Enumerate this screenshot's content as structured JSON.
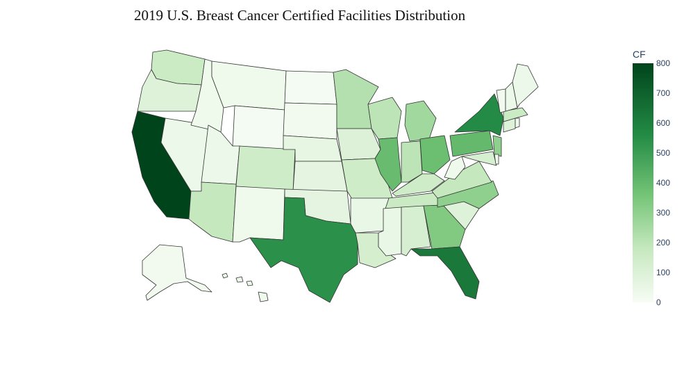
{
  "title": "2019 U.S. Breast Cancer Certified Facilities Distribution",
  "colorbar": {
    "title": "CF",
    "ticks": [
      "0",
      "100",
      "200",
      "300",
      "400",
      "500",
      "600",
      "700",
      "800"
    ],
    "min": 0,
    "max": 800,
    "colors": [
      "#f7fcf5",
      "#c7e9c0",
      "#74c476",
      "#238b45",
      "#00441b"
    ]
  },
  "map_data": {
    "type": "choropleth",
    "scope": "usa",
    "states": [
      {
        "state": "CA",
        "value": 800
      },
      {
        "state": "FL",
        "value": 620
      },
      {
        "state": "TX",
        "value": 540
      },
      {
        "state": "NY",
        "value": 560
      },
      {
        "state": "PA",
        "value": 400
      },
      {
        "state": "OH",
        "value": 380
      },
      {
        "state": "IL",
        "value": 390
      },
      {
        "state": "GA",
        "value": 330
      },
      {
        "state": "NC",
        "value": 300
      },
      {
        "state": "MI",
        "value": 260
      },
      {
        "state": "NJ",
        "value": 300
      },
      {
        "state": "WI",
        "value": 200
      },
      {
        "state": "MN",
        "value": 220
      },
      {
        "state": "IN",
        "value": 200
      },
      {
        "state": "VA",
        "value": 180
      },
      {
        "state": "AZ",
        "value": 180
      },
      {
        "state": "CO",
        "value": 150
      },
      {
        "state": "TN",
        "value": 170
      },
      {
        "state": "MO",
        "value": 150
      },
      {
        "state": "WA",
        "value": 160
      },
      {
        "state": "KY",
        "value": 150
      },
      {
        "state": "LA",
        "value": 130
      },
      {
        "state": "AL",
        "value": 120
      },
      {
        "state": "SC",
        "value": 90
      },
      {
        "state": "MA",
        "value": 160
      },
      {
        "state": "OR",
        "value": 90
      },
      {
        "state": "IA",
        "value": 100
      },
      {
        "state": "KS",
        "value": 70
      },
      {
        "state": "NE",
        "value": 60
      },
      {
        "state": "OK",
        "value": 70
      },
      {
        "state": "AR",
        "value": 50
      },
      {
        "state": "MS",
        "value": 50
      },
      {
        "state": "MD",
        "value": 120
      },
      {
        "state": "CT",
        "value": 90
      },
      {
        "state": "NV",
        "value": 40
      },
      {
        "state": "UT",
        "value": 40
      },
      {
        "state": "NM",
        "value": 30
      },
      {
        "state": "ID",
        "value": 30
      },
      {
        "state": "MT",
        "value": 30
      },
      {
        "state": "WY",
        "value": 10
      },
      {
        "state": "ND",
        "value": 10
      },
      {
        "state": "SD",
        "value": 20
      },
      {
        "state": "WV",
        "value": 30
      },
      {
        "state": "ME",
        "value": 40
      },
      {
        "state": "NH",
        "value": 40
      },
      {
        "state": "VT",
        "value": 20
      },
      {
        "state": "RI",
        "value": 30
      },
      {
        "state": "DE",
        "value": 30
      },
      {
        "state": "AK",
        "value": 20
      },
      {
        "state": "HI",
        "value": 30
      }
    ]
  }
}
